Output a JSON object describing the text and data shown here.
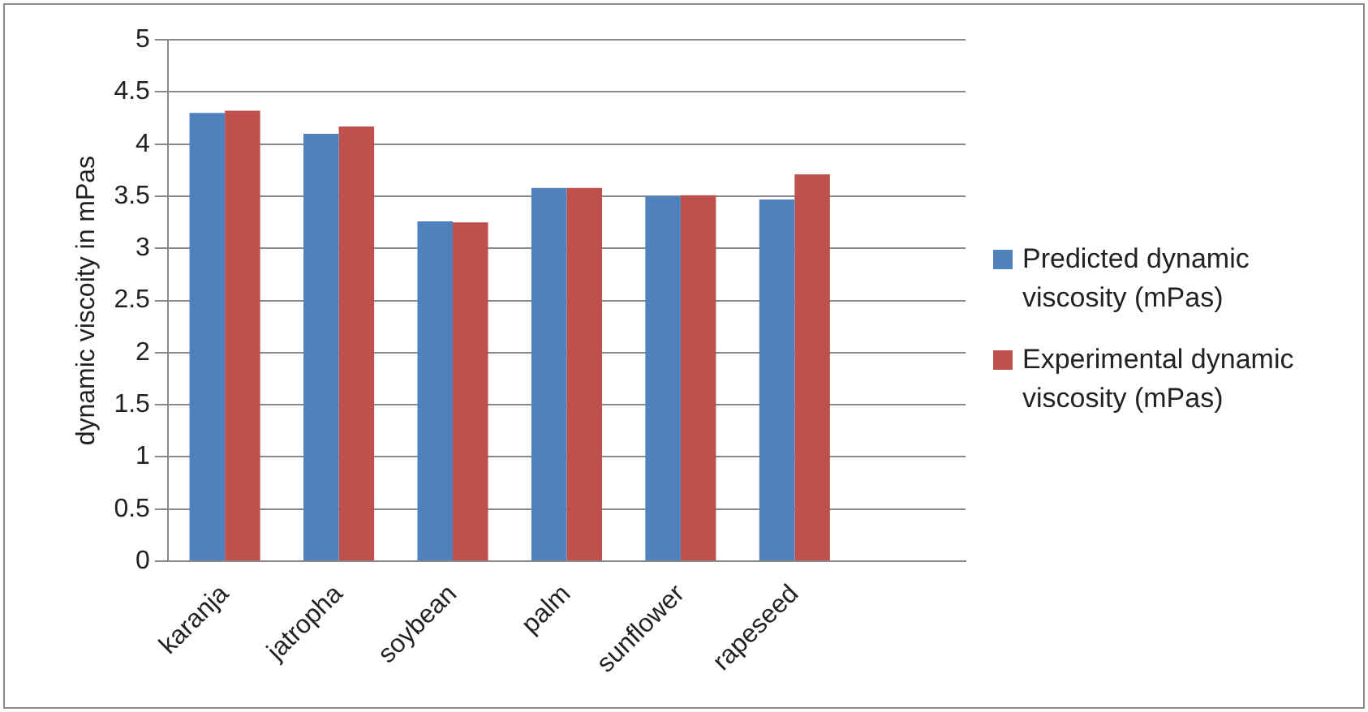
{
  "chart_data": {
    "type": "bar",
    "ylabel": "dynamic viscoity in mPas",
    "categories": [
      "karanja",
      "jatropha",
      "soybean",
      "palm",
      "sunflower",
      "rapeseed",
      null
    ],
    "series": [
      {
        "name": "Predicted dynamic viscosity (mPas)",
        "color": "#4f81bd",
        "values": [
          4.3,
          4.1,
          3.26,
          3.58,
          3.5,
          3.47,
          null
        ]
      },
      {
        "name": "Experimental dynamic viscosity (mPas)",
        "color": "#c0504d",
        "values": [
          4.32,
          4.17,
          3.25,
          3.58,
          3.51,
          3.71,
          null
        ]
      }
    ],
    "ylim": [
      0,
      5
    ],
    "yticks": [
      0,
      0.5,
      1,
      1.5,
      2,
      2.5,
      3,
      3.5,
      4,
      4.5,
      5
    ],
    "grid": "y",
    "legend": "right"
  }
}
